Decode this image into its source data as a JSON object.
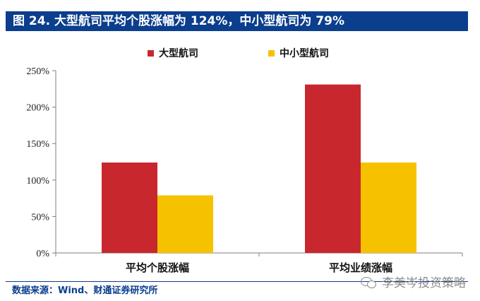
{
  "header": {
    "title": "图 24. 大型航司平均个股涨幅为 124%，中小型航司为 79%"
  },
  "source": {
    "text": "数据来源：Wind、财通证券研究所"
  },
  "watermark": {
    "text": "李美岑投资策略",
    "icon": "wechat-icon"
  },
  "colors": {
    "header_bg": "#0b3e8d",
    "series_large": "#c8282d",
    "series_small": "#f6c200"
  },
  "chart_data": {
    "type": "bar",
    "categories": [
      "平均个股涨幅",
      "平均业绩涨幅"
    ],
    "series": [
      {
        "name": "大型航司",
        "values": [
          124,
          231
        ],
        "color": "#c8282d"
      },
      {
        "name": "中小型航司",
        "values": [
          79,
          124
        ],
        "color": "#f6c200"
      }
    ],
    "yticks": [
      "0%",
      "50%",
      "100%",
      "150%",
      "200%",
      "250%"
    ],
    "ylim": [
      0,
      250
    ],
    "ytick_step": 50,
    "title": "",
    "xlabel": "",
    "ylabel": "",
    "grid": false,
    "legend_position": "top-center"
  }
}
